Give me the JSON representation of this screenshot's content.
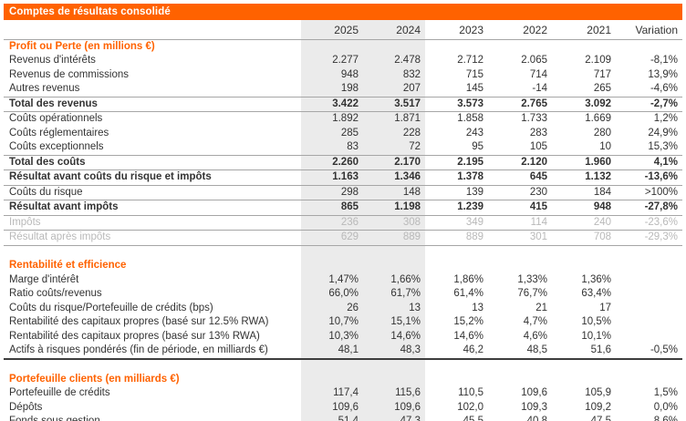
{
  "title": "Comptes de résultats consolidé",
  "columns": [
    "2025",
    "2024",
    "2023",
    "2022",
    "2021",
    "Variation"
  ],
  "colors": {
    "accent": "#ff6200",
    "band": "#ebebeb",
    "rule": "#a6a6a6",
    "rule_dark": "#3d3d3d",
    "text": "#333333",
    "dim_text": "#b9b9b9",
    "title_text": "#ffffff"
  },
  "sections": [
    {
      "title": "Profit ou Perte (en millions €)",
      "rows": [
        {
          "label": "Revenus d'intérêts",
          "kind": "normal",
          "values": [
            "2.277",
            "2.478",
            "2.712",
            "2.065",
            "2.109",
            "-8,1%"
          ]
        },
        {
          "label": "Revenus de commissions",
          "kind": "normal",
          "values": [
            "948",
            "832",
            "715",
            "714",
            "717",
            "13,9%"
          ]
        },
        {
          "label": "Autres revenus",
          "kind": "normal",
          "values": [
            "198",
            "207",
            "145",
            "-14",
            "265",
            "-4,6%"
          ]
        },
        {
          "label": "Total des revenus",
          "kind": "total",
          "values": [
            "3.422",
            "3.517",
            "3.573",
            "2.765",
            "3.092",
            "-2,7%"
          ]
        },
        {
          "label": "Coûts opérationnels",
          "kind": "normal",
          "values": [
            "1.892",
            "1.871",
            "1.858",
            "1.733",
            "1.669",
            "1,2%"
          ]
        },
        {
          "label": "Coûts réglementaires",
          "kind": "normal",
          "values": [
            "285",
            "228",
            "243",
            "283",
            "280",
            "24,9%"
          ]
        },
        {
          "label": "Coûts exceptionnels",
          "kind": "normal",
          "values": [
            "83",
            "72",
            "95",
            "105",
            "10",
            "15,3%"
          ]
        },
        {
          "label": "Total des coûts",
          "kind": "total",
          "values": [
            "2.260",
            "2.170",
            "2.195",
            "2.120",
            "1.960",
            "4,1%"
          ]
        },
        {
          "label": "Résultat avant coûts du risque et impôts",
          "kind": "total",
          "values": [
            "1.163",
            "1.346",
            "1.378",
            "645",
            "1.132",
            "-13,6%"
          ]
        },
        {
          "label": "Coûts du risque",
          "kind": "normal",
          "values": [
            "298",
            "148",
            "139",
            "230",
            "184",
            ">100%"
          ]
        },
        {
          "label": "Résultat avant impôts",
          "kind": "total",
          "values": [
            "865",
            "1.198",
            "1.239",
            "415",
            "948",
            "-27,8%"
          ]
        },
        {
          "label": "Impôts",
          "kind": "dim",
          "values": [
            "236",
            "308",
            "349",
            "114",
            "240",
            "-23,6%"
          ]
        },
        {
          "label": "Résultat après impôts",
          "kind": "dim-ruled",
          "values": [
            "629",
            "889",
            "889",
            "301",
            "708",
            "-29,3%"
          ]
        }
      ]
    },
    {
      "title": "Rentabilité et efficience",
      "rows": [
        {
          "label": "Marge d'intérêt",
          "kind": "normal",
          "values": [
            "1,47%",
            "1,66%",
            "1,86%",
            "1,33%",
            "1,36%",
            ""
          ]
        },
        {
          "label": "Ratio coûts/revenus",
          "kind": "normal",
          "values": [
            "66,0%",
            "61,7%",
            "61,4%",
            "76,7%",
            "63,4%",
            ""
          ]
        },
        {
          "label": "Coûts du risque/Portefeuille de crédits (bps)",
          "kind": "normal",
          "values": [
            "26",
            "13",
            "13",
            "21",
            "17",
            ""
          ]
        },
        {
          "label": "Rentabilité des capitaux propres (basé sur 12.5% RWA)",
          "kind": "normal",
          "values": [
            "10,7%",
            "15,1%",
            "15,2%",
            "4,7%",
            "10,5%",
            ""
          ]
        },
        {
          "label": "Rentabilité des capitaux propres (basé sur 13% RWA)",
          "kind": "normal",
          "values": [
            "10,3%",
            "14,6%",
            "14,6%",
            "4,6%",
            "10,1%",
            ""
          ]
        },
        {
          "label": "Actifs à risques pondérés (fin de période, en milliards €)",
          "kind": "end",
          "values": [
            "48,1",
            "48,3",
            "46,2",
            "48,5",
            "51,6",
            "-0,5%"
          ]
        }
      ]
    },
    {
      "title": "Portefeuille clients (en milliards €)",
      "rows": [
        {
          "label": "Portefeuille de crédits",
          "kind": "normal",
          "values": [
            "117,4",
            "115,6",
            "110,5",
            "109,6",
            "105,9",
            "1,5%"
          ]
        },
        {
          "label": "Dépôts",
          "kind": "normal",
          "values": [
            "109,6",
            "109,6",
            "102,0",
            "109,3",
            "109,2",
            "0,0%"
          ]
        },
        {
          "label": "Fonds sous gestion",
          "kind": "end",
          "values": [
            "51,4",
            "47,3",
            "45,5",
            "40,8",
            "47,5",
            "8,6%"
          ]
        }
      ]
    }
  ]
}
